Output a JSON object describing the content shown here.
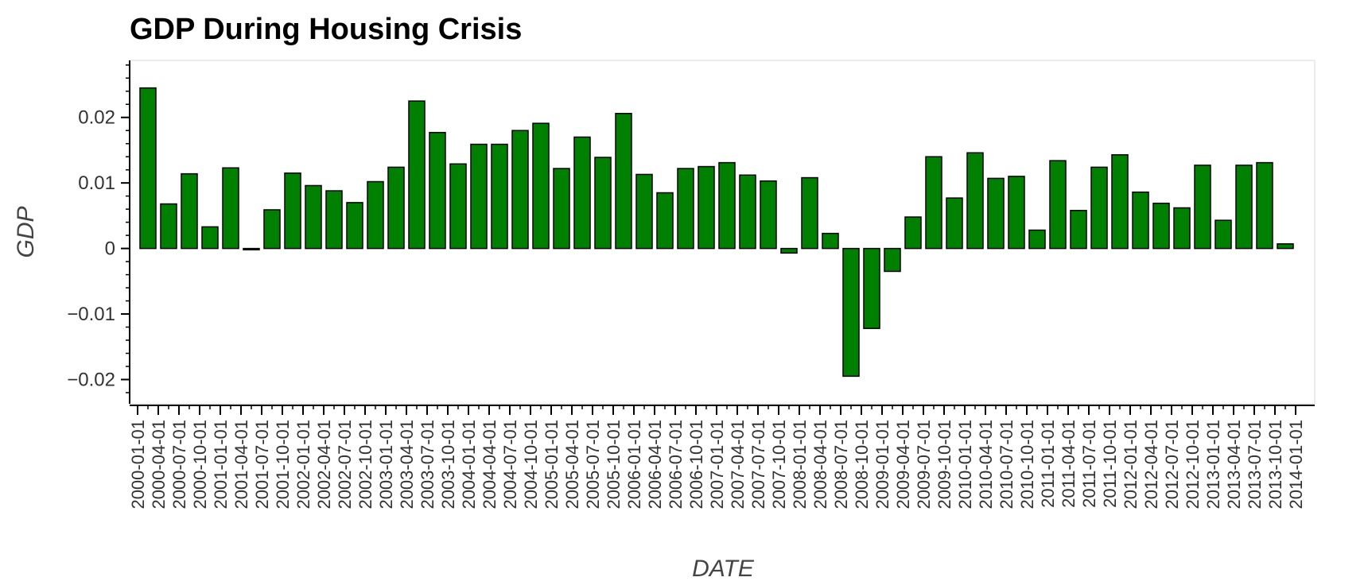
{
  "chart_data": {
    "type": "bar",
    "title": "GDP During Housing Crisis",
    "xlabel": "DATE",
    "ylabel": "GDP",
    "ylim": [
      -0.0237,
      0.0287
    ],
    "yticks": [
      -0.02,
      -0.01,
      0,
      0.01,
      0.02
    ],
    "ytick_labels": [
      "−0.02",
      "−0.01",
      "0",
      "0.01",
      "0.02"
    ],
    "grid": false,
    "bar_color": "#008000",
    "bar_edge_color": "#000000",
    "categories": [
      "2000-01-01",
      "2000-04-01",
      "2000-07-01",
      "2000-10-01",
      "2001-01-01",
      "2001-04-01",
      "2001-07-01",
      "2001-10-01",
      "2002-01-01",
      "2002-04-01",
      "2002-07-01",
      "2002-10-01",
      "2003-01-01",
      "2003-04-01",
      "2003-07-01",
      "2003-10-01",
      "2004-01-01",
      "2004-04-01",
      "2004-07-01",
      "2004-10-01",
      "2005-01-01",
      "2005-04-01",
      "2005-07-01",
      "2005-10-01",
      "2006-01-01",
      "2006-04-01",
      "2006-07-01",
      "2006-10-01",
      "2007-01-01",
      "2007-04-01",
      "2007-07-01",
      "2007-10-01",
      "2008-01-01",
      "2008-04-01",
      "2008-07-01",
      "2008-10-01",
      "2009-01-01",
      "2009-04-01",
      "2009-07-01",
      "2009-10-01",
      "2010-01-01",
      "2010-04-01",
      "2010-07-01",
      "2010-10-01",
      "2011-01-01",
      "2011-04-01",
      "2011-07-01",
      "2011-10-01",
      "2012-01-01",
      "2012-04-01",
      "2012-07-01",
      "2012-10-01",
      "2013-01-01",
      "2013-04-01",
      "2013-07-01",
      "2013-10-01",
      "2014-01-01"
    ],
    "bars": [
      {
        "date": "2000-04-01",
        "value": 0.0245
      },
      {
        "date": "2000-07-01",
        "value": 0.0068
      },
      {
        "date": "2000-10-01",
        "value": 0.0114
      },
      {
        "date": "2001-01-01",
        "value": 0.0033
      },
      {
        "date": "2001-04-01",
        "value": 0.0123
      },
      {
        "date": "2001-07-01",
        "value": -0.0002
      },
      {
        "date": "2001-10-01",
        "value": 0.0059
      },
      {
        "date": "2002-01-01",
        "value": 0.0115
      },
      {
        "date": "2002-04-01",
        "value": 0.0096
      },
      {
        "date": "2002-07-01",
        "value": 0.0088
      },
      {
        "date": "2002-10-01",
        "value": 0.007
      },
      {
        "date": "2003-01-01",
        "value": 0.0102
      },
      {
        "date": "2003-04-01",
        "value": 0.0124
      },
      {
        "date": "2003-07-01",
        "value": 0.0225
      },
      {
        "date": "2003-10-01",
        "value": 0.0177
      },
      {
        "date": "2004-01-01",
        "value": 0.0129
      },
      {
        "date": "2004-04-01",
        "value": 0.0159
      },
      {
        "date": "2004-07-01",
        "value": 0.0159
      },
      {
        "date": "2004-10-01",
        "value": 0.018
      },
      {
        "date": "2005-01-01",
        "value": 0.0191
      },
      {
        "date": "2005-04-01",
        "value": 0.0122
      },
      {
        "date": "2005-07-01",
        "value": 0.017
      },
      {
        "date": "2005-10-01",
        "value": 0.0139
      },
      {
        "date": "2006-01-01",
        "value": 0.0206
      },
      {
        "date": "2006-04-01",
        "value": 0.0113
      },
      {
        "date": "2006-07-01",
        "value": 0.0085
      },
      {
        "date": "2006-10-01",
        "value": 0.0122
      },
      {
        "date": "2007-01-01",
        "value": 0.0125
      },
      {
        "date": "2007-04-01",
        "value": 0.0131
      },
      {
        "date": "2007-07-01",
        "value": 0.0112
      },
      {
        "date": "2007-10-01",
        "value": 0.0103
      },
      {
        "date": "2008-01-01",
        "value": -0.0007
      },
      {
        "date": "2008-04-01",
        "value": 0.0108
      },
      {
        "date": "2008-07-01",
        "value": 0.0023
      },
      {
        "date": "2008-10-01",
        "value": -0.0195
      },
      {
        "date": "2009-01-01",
        "value": -0.0122
      },
      {
        "date": "2009-04-01",
        "value": -0.0035
      },
      {
        "date": "2009-07-01",
        "value": 0.0048
      },
      {
        "date": "2009-10-01",
        "value": 0.014
      },
      {
        "date": "2010-01-01",
        "value": 0.0077
      },
      {
        "date": "2010-04-01",
        "value": 0.0146
      },
      {
        "date": "2010-07-01",
        "value": 0.0107
      },
      {
        "date": "2010-10-01",
        "value": 0.011
      },
      {
        "date": "2011-01-01",
        "value": 0.0028
      },
      {
        "date": "2011-04-01",
        "value": 0.0134
      },
      {
        "date": "2011-07-01",
        "value": 0.0058
      },
      {
        "date": "2011-10-01",
        "value": 0.0124
      },
      {
        "date": "2012-01-01",
        "value": 0.0143
      },
      {
        "date": "2012-04-01",
        "value": 0.0086
      },
      {
        "date": "2012-07-01",
        "value": 0.0069
      },
      {
        "date": "2012-10-01",
        "value": 0.0062
      },
      {
        "date": "2013-01-01",
        "value": 0.0127
      },
      {
        "date": "2013-04-01",
        "value": 0.0043
      },
      {
        "date": "2013-07-01",
        "value": 0.0127
      },
      {
        "date": "2013-10-01",
        "value": 0.0131
      },
      {
        "date": "2014-01-01",
        "value": 0.0007
      }
    ]
  }
}
